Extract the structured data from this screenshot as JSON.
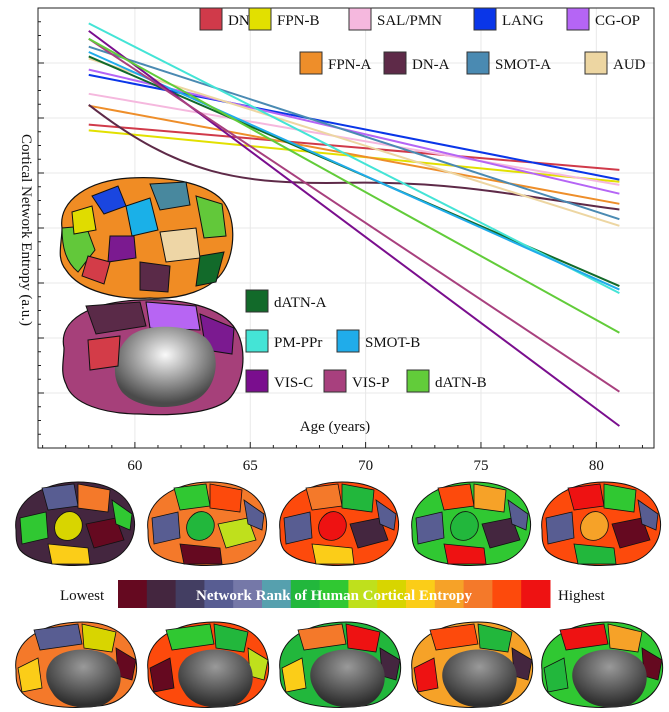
{
  "chart_data": {
    "type": "line",
    "xlabel": "Age (years)",
    "ylabel": "Cortical Network Entropy (a.u.)",
    "xlim": [
      55.8,
      82.5
    ],
    "ylim": [
      0,
      1
    ],
    "xticks": [
      60,
      65,
      70,
      75,
      80
    ],
    "x": [
      58,
      81
    ],
    "series": [
      {
        "name": "DN-B",
        "color": "#d03a4a",
        "values": [
          0.735,
          0.632
        ]
      },
      {
        "name": "FPN-B",
        "color": "#e2e000",
        "values": [
          0.722,
          0.605
        ]
      },
      {
        "name": "SAL/PMN",
        "color": "#f5b8de",
        "values": [
          0.805,
          0.598
        ]
      },
      {
        "name": "LANG",
        "color": "#0a36e8",
        "values": [
          0.848,
          0.61
        ]
      },
      {
        "name": "CG-OP",
        "color": "#b565f5",
        "values": [
          0.86,
          0.578
        ]
      },
      {
        "name": "FPN-A",
        "color": "#ee8e2a",
        "values": [
          0.778,
          0.555
        ]
      },
      {
        "name": "DN-A",
        "color": "#5e2a48",
        "values": [
          0.78,
          0.542
        ]
      },
      {
        "name": "SMOT-A",
        "color": "#4a8ab2",
        "values": [
          0.912,
          0.52
        ]
      },
      {
        "name": "AUD",
        "color": "#edd6a2",
        "values": [
          0.885,
          0.505
        ]
      },
      {
        "name": "dATN-A",
        "color": "#126a2a",
        "values": [
          0.89,
          0.368
        ]
      },
      {
        "name": "PM-PPr",
        "color": "#44e4d6",
        "values": [
          0.965,
          0.352
        ]
      },
      {
        "name": "SMOT-B",
        "color": "#20acea",
        "values": [
          0.9,
          0.36
        ]
      },
      {
        "name": "VIS-C",
        "color": "#7a0e8e",
        "values": [
          0.948,
          0.05
        ]
      },
      {
        "name": "VIS-P",
        "color": "#a8407e",
        "values": [
          0.93,
          0.128
        ]
      },
      {
        "name": "dATN-B",
        "color": "#62cc3a",
        "values": [
          0.93,
          0.262
        ]
      }
    ],
    "legend": "top-right",
    "grid": true
  },
  "colorbar": {
    "left_label": "Lowest",
    "title": "Network Rank of Human Cortical Entropy",
    "right_label": "Highest",
    "colors": [
      "#650920",
      "#44263f",
      "#433e62",
      "#585d92",
      "#7578a8",
      "#56a0ae",
      "#22b73c",
      "#30c832",
      "#bfe01c",
      "#d8d500",
      "#fbcd18",
      "#f6a228",
      "#f4792a",
      "#fd4a0c",
      "#ee1212"
    ]
  }
}
